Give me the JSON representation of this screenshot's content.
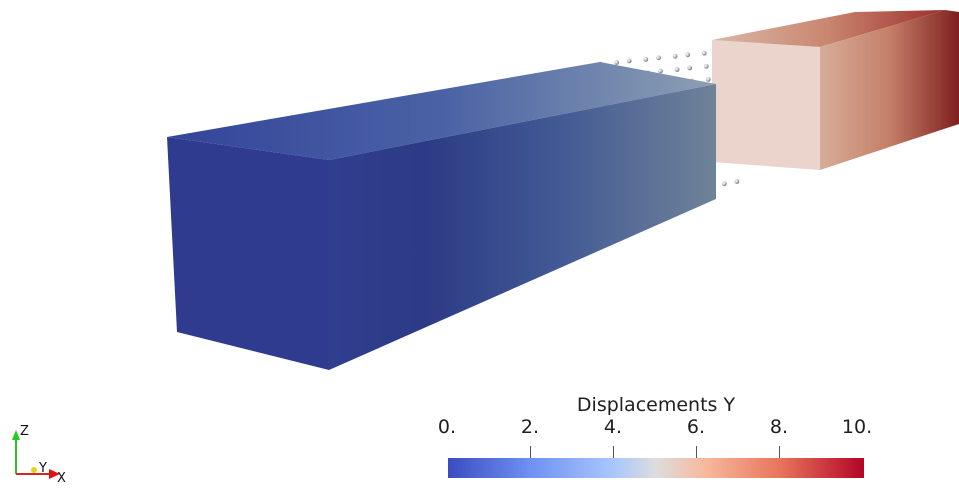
{
  "viewport": {
    "description_icon": "3d-render",
    "colors": {
      "low": "#3b4cc0",
      "mid": "#dddddd",
      "high": "#b40426"
    }
  },
  "colorbar": {
    "title": "Displacements Y",
    "range": [
      0,
      10
    ],
    "ticks": [
      "0.",
      "2.",
      "4.",
      "6.",
      "8.",
      "10."
    ]
  },
  "axes": {
    "z": "Z",
    "y": "Y",
    "x": "X"
  }
}
